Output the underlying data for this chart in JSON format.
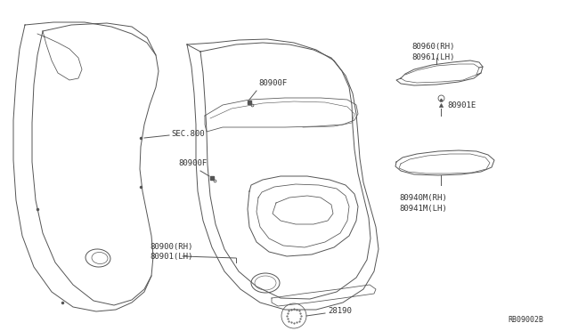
{
  "background_color": "#ffffff",
  "line_color": "#555555",
  "label_color": "#333333",
  "font_size": 6.5,
  "labels": {
    "sec800": "SEC.800",
    "80900F_top": "80900F",
    "80900F_mid": "80900F",
    "80900_rh_lh": "80900(RH)\n80901(LH)",
    "28190": "28190",
    "80960_rh": "80960(RH)\n80961(LH)",
    "80901E": "80901E",
    "80940M": "80940M(RH)\n80941M(LH)",
    "ref": "RB09002B"
  }
}
